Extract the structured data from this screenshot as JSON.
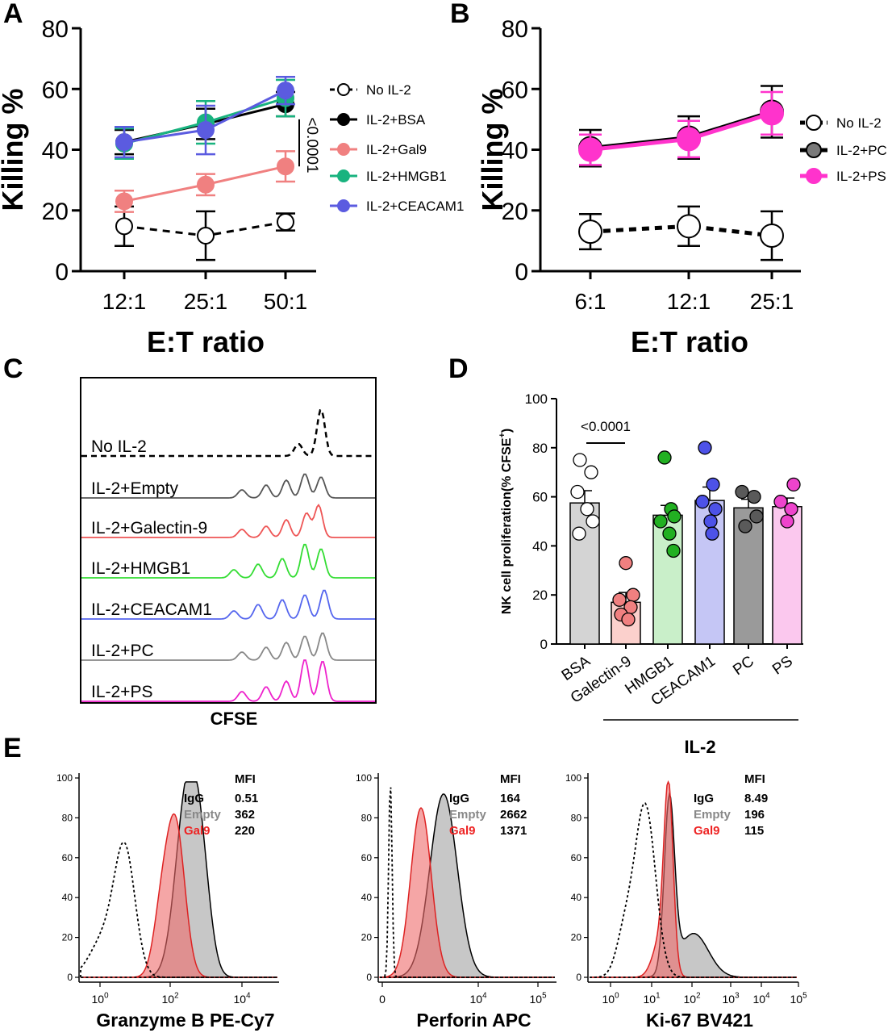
{
  "panel_letters": [
    "A",
    "B",
    "C",
    "D",
    "E"
  ],
  "chart_data": [
    {
      "panel": "A",
      "type": "line",
      "ylabel": "Killing %",
      "xlabel": "E:T ratio",
      "categories": [
        "12:1",
        "25:1",
        "50:1"
      ],
      "ylim": [
        0,
        80
      ],
      "yticks": [
        0,
        20,
        40,
        60,
        80
      ],
      "legend_position": "right",
      "annotation": "<0.0001",
      "series": [
        {
          "name": "No IL-2",
          "values": [
            14.8,
            11.7,
            16.2
          ],
          "err": [
            6.5,
            8,
            2.8
          ],
          "color": "#000000",
          "fill": "#ffffff",
          "dashed": true
        },
        {
          "name": "IL-2+BSA",
          "values": [
            42.5,
            48.5,
            55.0
          ],
          "err": [
            4,
            5,
            4
          ],
          "color": "#000000",
          "fill": "#000000",
          "dashed": false
        },
        {
          "name": "IL-2+Gal9",
          "values": [
            23.0,
            28.5,
            34.5
          ],
          "err": [
            3.5,
            3.5,
            5
          ],
          "color": "#f08080",
          "fill": "#f08080",
          "dashed": false
        },
        {
          "name": "IL-2+HMGB1",
          "values": [
            42.0,
            49.0,
            57.0
          ],
          "err": [
            5,
            7,
            6
          ],
          "color": "#19b37f",
          "fill": "#19b37f",
          "dashed": false
        },
        {
          "name": "IL-2+CEACAM1",
          "values": [
            42.5,
            46.5,
            59.5
          ],
          "err": [
            5,
            8,
            4.5
          ],
          "color": "#5b5be0",
          "fill": "#5b5be0",
          "dashed": false
        }
      ]
    },
    {
      "panel": "B",
      "type": "line",
      "ylabel": "Killing %",
      "xlabel": "E:T ratio",
      "categories": [
        "6:1",
        "12:1",
        "25:1"
      ],
      "ylim": [
        0,
        80
      ],
      "yticks": [
        0,
        20,
        40,
        60,
        80
      ],
      "legend_position": "right",
      "series": [
        {
          "name": "No IL-2",
          "values": [
            13.0,
            14.8,
            11.7
          ],
          "err": [
            5.8,
            6.5,
            8
          ],
          "color": "#000000",
          "fill": "#ffffff",
          "dashed": true
        },
        {
          "name": "IL-2+PC",
          "values": [
            40.5,
            44.0,
            52.5
          ],
          "err": [
            6,
            7,
            8.5
          ],
          "color": "#000000",
          "fill": "#7a7a7a",
          "dashed": false
        },
        {
          "name": "IL-2+PS",
          "values": [
            40.0,
            43.5,
            52.0
          ],
          "err": [
            5,
            6,
            7
          ],
          "color": "#ff33cc",
          "fill": "#ff33cc",
          "dashed": false
        }
      ]
    },
    {
      "panel": "C",
      "type": "histogram-stack",
      "xlabel": "CFSE",
      "tracks": [
        {
          "label": "No IL-2",
          "color": "#000000",
          "dashed": true
        },
        {
          "label": "IL-2+Empty",
          "color": "#555555",
          "dashed": false
        },
        {
          "label": "IL-2+Galectin-9",
          "color": "#ee5555",
          "dashed": false
        },
        {
          "label": "IL-2+HMGB1",
          "color": "#33dd33",
          "dashed": false
        },
        {
          "label": "IL-2+CEACAM1",
          "color": "#5566ee",
          "dashed": false
        },
        {
          "label": "IL-2+PC",
          "color": "#888888",
          "dashed": false
        },
        {
          "label": "IL-2+PS",
          "color": "#ee22cc",
          "dashed": false
        }
      ]
    },
    {
      "panel": "D",
      "type": "bar",
      "ylabel": "NK cell proliferation(% CFSE",
      "ylabel_sup": "+",
      "ylabel_end": ")",
      "categories": [
        "BSA",
        "Galectin-9",
        "HMGB1",
        "CEACAM1",
        "PC",
        "PS"
      ],
      "values": [
        57.5,
        17.0,
        52.5,
        58.5,
        55.5,
        56.0
      ],
      "err": [
        5,
        4,
        4,
        5.5,
        3.5,
        3.5
      ],
      "bar_colors": [
        "#d4d4d4",
        "#fbd0cc",
        "#c9efc9",
        "#c5c6f5",
        "#9a9a9a",
        "#fbc8ee"
      ],
      "point_colors": [
        "#ffffff",
        "#f08080",
        "#22b022",
        "#4d52e8",
        "#5a5a5a",
        "#ee44cc"
      ],
      "points": [
        [
          75,
          70,
          62,
          55,
          50,
          45
        ],
        [
          33,
          20,
          18,
          15,
          12,
          10
        ],
        [
          76,
          55,
          52,
          50,
          45,
          38
        ],
        [
          80,
          65,
          58,
          55,
          50,
          45
        ],
        [
          62,
          60,
          52,
          48
        ],
        [
          65,
          58,
          55,
          50
        ]
      ],
      "ylim": [
        0,
        100
      ],
      "yticks": [
        0,
        20,
        40,
        60,
        80,
        100
      ],
      "annotation": "<0.0001",
      "group_label": "IL-2"
    },
    {
      "panel": "E",
      "type": "histogram-overlay",
      "plots": [
        {
          "xlabel": "Granzyme B PE-Cy7",
          "yticks": [
            0,
            20,
            40,
            60,
            80,
            100
          ],
          "xticks": [
            "10",
            "10",
            "10"
          ],
          "xtick_exp": [
            "0",
            "2",
            "4"
          ],
          "mfi_header": "MFI",
          "mfi": [
            {
              "label": "IgG",
              "value": "0.51",
              "color": "#000000"
            },
            {
              "label": "Empty",
              "value": "362",
              "color": "#888888"
            },
            {
              "label": "Gal9",
              "value": "220",
              "color": "#ee2222"
            }
          ]
        },
        {
          "xlabel": "Perforin APC",
          "yticks": [
            0,
            20,
            40,
            60,
            80,
            100
          ],
          "xticks": [
            "0",
            "10",
            "10"
          ],
          "xtick_exp": [
            "",
            "4",
            "5"
          ],
          "mfi_header": "MFI",
          "mfi": [
            {
              "label": "IgG",
              "value": "164",
              "color": "#000000"
            },
            {
              "label": "Empty",
              "value": "2662",
              "color": "#888888"
            },
            {
              "label": "Gal9",
              "value": "1371",
              "color": "#ee2222"
            }
          ]
        },
        {
          "xlabel": "Ki-67 BV421",
          "yticks": [
            0,
            20,
            40,
            60,
            80,
            100
          ],
          "xticks": [
            "10",
            "10",
            "10",
            "10",
            "10",
            "10"
          ],
          "xtick_exp": [
            "0",
            "1",
            "2",
            "3",
            "4",
            "5"
          ],
          "mfi_header": "MFI",
          "mfi": [
            {
              "label": "IgG",
              "value": "8.49",
              "color": "#000000"
            },
            {
              "label": "Empty",
              "value": "196",
              "color": "#888888"
            },
            {
              "label": "Gal9",
              "value": "115",
              "color": "#ee2222"
            }
          ]
        }
      ]
    }
  ]
}
